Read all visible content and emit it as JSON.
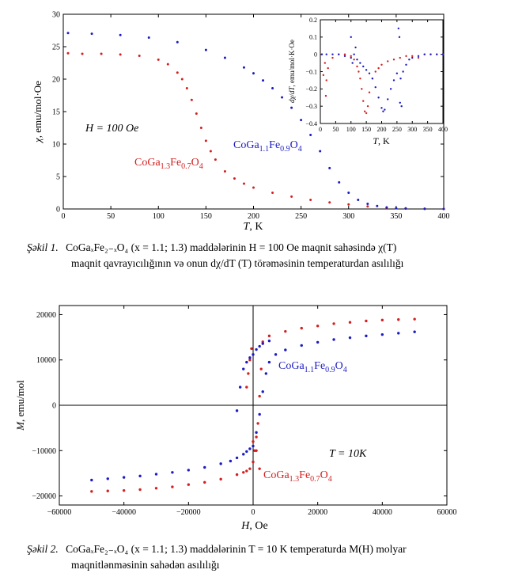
{
  "figure1": {
    "caption_label": "Şəkil 1.",
    "caption_line1": "CoGaₓFe₂₋ₓO₄ (x = 1.1; 1.3) maddələrinin H = 100 Oe maqnit sahəsində χ(T)",
    "caption_line2": "maqnit qavrayıcılığının və onun dχ/dT (T) törəməsinin temperaturdan asılılığı"
  },
  "figure2": {
    "caption_label": "Şəkil 2.",
    "caption_line1": "CoGaₓFe₂₋ₓO₄ (x = 1.1; 1.3) maddələrinin T = 10 K temperaturda M(H) molyar",
    "caption_line2": "maqnitlənməsinin sahədən asılılığı"
  },
  "colors": {
    "red": "#d42020",
    "blue": "#1c1cc4"
  },
  "chart_data": [
    {
      "type": "scatter",
      "xlabel": "T, K",
      "ylabel": "χ, emu/mol·Oe",
      "xlim": [
        0,
        400
      ],
      "ylim": [
        0,
        30
      ],
      "xticks": [
        0,
        50,
        100,
        150,
        200,
        250,
        300,
        350,
        400
      ],
      "yticks": [
        0,
        5,
        10,
        15,
        20,
        25,
        30
      ],
      "annotation": "H = 100 Oe",
      "series": [
        {
          "name": "CoGa1.3Fe0.7O4",
          "color": "red",
          "x": [
            5,
            20,
            40,
            60,
            80,
            100,
            110,
            120,
            125,
            130,
            135,
            140,
            145,
            150,
            155,
            160,
            170,
            180,
            190,
            200,
            220,
            240,
            260,
            280,
            300,
            320,
            340,
            360,
            380,
            400
          ],
          "y": [
            24.0,
            23.9,
            23.9,
            23.8,
            23.6,
            23.0,
            22.3,
            21.0,
            20.0,
            18.6,
            16.8,
            14.7,
            12.5,
            10.5,
            8.9,
            7.6,
            5.8,
            4.7,
            3.9,
            3.3,
            2.5,
            1.9,
            1.4,
            1.0,
            0.7,
            0.4,
            0.2,
            0.1,
            0.05,
            0.0
          ]
        },
        {
          "name": "CoGa1.1Fe0.9O4",
          "color": "blue",
          "x": [
            5,
            30,
            60,
            90,
            120,
            150,
            170,
            190,
            200,
            210,
            220,
            230,
            240,
            250,
            260,
            270,
            280,
            290,
            300,
            310,
            320,
            330,
            340,
            350,
            360,
            380,
            400
          ],
          "y": [
            27.1,
            27.0,
            26.8,
            26.4,
            25.7,
            24.5,
            23.3,
            21.8,
            20.9,
            19.8,
            18.6,
            17.2,
            15.6,
            13.7,
            11.4,
            8.9,
            6.3,
            4.1,
            2.5,
            1.4,
            0.8,
            0.45,
            0.25,
            0.12,
            0.06,
            0.02,
            0.0
          ]
        }
      ],
      "series_labels": {
        "red": {
          "pre": "CoGa",
          "s1": "1.3",
          "mid": "Fe",
          "s2": "0.7",
          "post": "O",
          "s3": "4"
        },
        "blue": {
          "pre": "CoGa",
          "s1": "1.1",
          "mid": "Fe",
          "s2": "0.9",
          "post": "O",
          "s3": "4"
        }
      }
    },
    {
      "type": "scatter",
      "inset": true,
      "xlabel": "T, K",
      "ylabel": "dχ/dT, emu/mol·K·Oe",
      "xlim": [
        0,
        400
      ],
      "ylim": [
        -0.4,
        0.2
      ],
      "xticks": [
        0,
        50,
        100,
        150,
        200,
        250,
        300,
        350,
        400
      ],
      "yticks": [
        0.2,
        0.1,
        0.0,
        -0.1,
        -0.2,
        -0.3,
        -0.4
      ],
      "series": [
        {
          "name": "CoGa1.3Fe0.7O4",
          "color": "red",
          "x": [
            5,
            15,
            25,
            40,
            60,
            80,
            100,
            110,
            120,
            125,
            130,
            135,
            140,
            145,
            150,
            155,
            160,
            170,
            180,
            190,
            200,
            220,
            240,
            260,
            280,
            300,
            320,
            340,
            360,
            380,
            400,
            10,
            18,
            20
          ],
          "y": [
            0.0,
            -0.05,
            -0.08,
            -0.02,
            0.0,
            0.0,
            -0.01,
            -0.03,
            -0.07,
            -0.1,
            -0.14,
            -0.2,
            -0.27,
            -0.33,
            -0.34,
            -0.3,
            -0.22,
            -0.14,
            -0.1,
            -0.08,
            -0.06,
            -0.04,
            -0.03,
            -0.02,
            -0.01,
            -0.01,
            -0.02,
            0.0,
            0.0,
            0.0,
            0.0,
            -0.12,
            -0.24,
            -0.15
          ]
        },
        {
          "name": "CoGa1.1Fe0.9O4",
          "color": "blue",
          "x": [
            5,
            20,
            40,
            60,
            80,
            100,
            110,
            115,
            120,
            130,
            140,
            150,
            160,
            170,
            180,
            190,
            200,
            205,
            210,
            220,
            230,
            240,
            250,
            255,
            258,
            260,
            262,
            265,
            270,
            280,
            290,
            300,
            320,
            340,
            360,
            380,
            400,
            100,
            105
          ],
          "y": [
            0.0,
            0.0,
            0.0,
            0.0,
            -0.01,
            -0.02,
            0.0,
            0.04,
            -0.03,
            -0.05,
            -0.07,
            -0.09,
            -0.11,
            -0.14,
            -0.19,
            -0.25,
            -0.31,
            -0.33,
            -0.32,
            -0.26,
            -0.2,
            -0.15,
            -0.11,
            0.15,
            0.1,
            -0.28,
            -0.14,
            -0.3,
            -0.1,
            -0.06,
            -0.03,
            -0.02,
            -0.01,
            0.0,
            0.0,
            0.0,
            0.0,
            0.1,
            -0.05
          ]
        }
      ]
    },
    {
      "type": "scatter",
      "xlabel": "H, Oe",
      "ylabel": "M, emu/mol",
      "xlim": [
        -60000,
        60000
      ],
      "ylim": [
        -22000,
        22000
      ],
      "xticks": [
        -60000,
        -40000,
        -20000,
        0,
        20000,
        40000,
        60000
      ],
      "yticks": [
        -20000,
        -10000,
        0,
        10000,
        20000
      ],
      "annotation": "T = 10K",
      "series": [
        {
          "name": "CoGa1.3Fe0.7O4",
          "color": "red",
          "x": [
            -50000,
            -45000,
            -40000,
            -35000,
            -30000,
            -25000,
            -20000,
            -15000,
            -10000,
            -5000,
            -3000,
            -2000,
            -1000,
            0,
            500,
            1000,
            1500,
            2000,
            2500,
            3000,
            5000,
            10000,
            15000,
            20000,
            25000,
            30000,
            35000,
            40000,
            45000,
            50000,
            -500,
            -1000,
            -1500,
            -2000,
            0,
            1000,
            2000
          ],
          "y": [
            -19000,
            -18900,
            -18800,
            -18600,
            -18300,
            -18000,
            -17500,
            -17000,
            -16300,
            -15300,
            -14800,
            -14500,
            -14000,
            -12500,
            -10000,
            -7000,
            -4000,
            2000,
            8000,
            14000,
            15300,
            16300,
            17000,
            17500,
            18000,
            18300,
            18600,
            18800,
            18900,
            19000,
            12500,
            10000,
            7000,
            4000,
            -8000,
            -10000,
            -14000
          ]
        },
        {
          "name": "CoGa1.1Fe0.9O4",
          "color": "blue",
          "x": [
            -50000,
            -45000,
            -40000,
            -35000,
            -30000,
            -25000,
            -20000,
            -15000,
            -10000,
            -7000,
            -5000,
            -3000,
            -2000,
            -1000,
            0,
            1000,
            2000,
            3000,
            4000,
            5000,
            7000,
            10000,
            15000,
            20000,
            25000,
            30000,
            35000,
            40000,
            45000,
            50000,
            -5000,
            -4000,
            -3000,
            -2000,
            -1000,
            0,
            1000,
            2000,
            3000,
            5000
          ],
          "y": [
            -16500,
            -16200,
            -15900,
            -15600,
            -15200,
            -14800,
            -14300,
            -13700,
            -12900,
            -12300,
            -11600,
            -10800,
            -10200,
            -9600,
            -9000,
            -6000,
            -2000,
            3000,
            7000,
            9500,
            11200,
            12200,
            13200,
            13900,
            14500,
            14900,
            15300,
            15600,
            15900,
            16200,
            -1200,
            4000,
            8000,
            9500,
            10500,
            11200,
            12300,
            13000,
            13600,
            14200
          ]
        }
      ],
      "series_labels": {
        "red": {
          "pre": "CoGa",
          "s1": "1.3",
          "mid": "Fe",
          "s2": "0.7",
          "post": "O",
          "s3": "4"
        },
        "blue": {
          "pre": "CoGa",
          "s1": "1.1",
          "mid": "Fe",
          "s2": "0.9",
          "post": "O",
          "s3": "4"
        }
      }
    }
  ]
}
